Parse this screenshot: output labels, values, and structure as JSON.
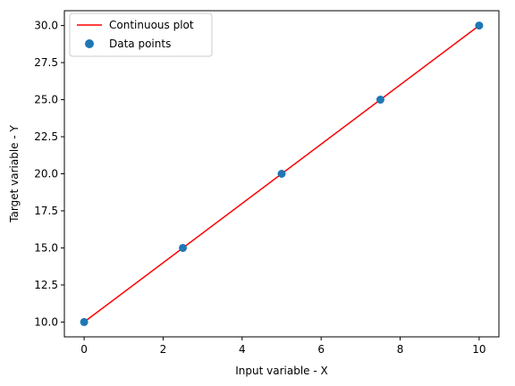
{
  "chart_data": {
    "type": "line",
    "xlabel": "Input variable - X",
    "ylabel": "Target variable - Y",
    "xlim": [
      -0.5,
      10.5
    ],
    "ylim": [
      9.0,
      31.0
    ],
    "x_ticks": [
      0,
      2,
      4,
      6,
      8,
      10
    ],
    "x_tick_labels": [
      "0",
      "2",
      "4",
      "6",
      "8",
      "10"
    ],
    "y_ticks": [
      10.0,
      12.5,
      15.0,
      17.5,
      20.0,
      22.5,
      25.0,
      27.5,
      30.0
    ],
    "y_tick_labels": [
      "10.0",
      "12.5",
      "15.0",
      "17.5",
      "20.0",
      "22.5",
      "25.0",
      "27.5",
      "30.0"
    ],
    "grid": false,
    "legend_position": "top-left",
    "series": [
      {
        "name": "Continuous plot",
        "kind": "line",
        "color": "#ff0000",
        "x": [
          0,
          10
        ],
        "y": [
          10,
          30
        ]
      },
      {
        "name": "Data points",
        "kind": "scatter",
        "color": "#1f77b4",
        "x": [
          0,
          2.5,
          5,
          7.5,
          10
        ],
        "y": [
          10,
          15,
          20,
          25,
          30
        ]
      }
    ]
  }
}
